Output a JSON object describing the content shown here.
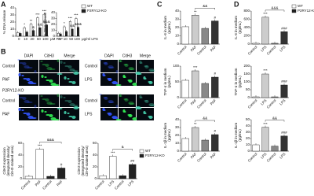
{
  "panels": {
    "a": "A",
    "b": "B",
    "c": "C",
    "d": "D"
  },
  "legend": [
    {
      "name": "WT",
      "color": "#ffffff"
    },
    {
      "name": "P2RY12-KO",
      "color": "#222222"
    }
  ],
  "microscopy": {
    "left": {
      "headers": [
        "DAPI",
        "CitH3",
        "Merge"
      ],
      "rows_top": [
        "Control",
        "PAF"
      ],
      "group": "P2RY12-KO",
      "rows_bottom": [
        "Control",
        "PAF"
      ]
    },
    "right": {
      "headers": [
        "DAPI",
        "CitH3",
        "Merge"
      ],
      "rows_top": [
        "Control",
        "LPS"
      ],
      "rows_bottom": [
        "Control",
        "LPS"
      ]
    }
  },
  "charts": [
    {
      "type": "bar",
      "ylabel": [
        "% DNA release"
      ],
      "xlabel": "μM PAF",
      "categories": [
        "0",
        "10",
        "20",
        "50",
        "100"
      ],
      "series": [
        {
          "name": "WT",
          "color": "#ffffff",
          "values": [
            5,
            12,
            17,
            26,
            31
          ],
          "labels": [
            null,
            "*",
            "**",
            "***",
            "***"
          ]
        },
        {
          "name": "P2RY12-KO",
          "color": "#222222",
          "values": [
            4,
            6,
            8,
            12,
            16
          ],
          "labels": [
            null,
            null,
            "&",
            "&&",
            "&&&"
          ]
        }
      ],
      "ylim": [
        0,
        40
      ],
      "yticks": [
        0,
        10,
        20,
        30,
        40
      ]
    },
    {
      "type": "bar",
      "ylabel": [
        "% DNA release"
      ],
      "xlabel": "μg/ml LPS",
      "categories": [
        "0",
        "10",
        "50",
        "100"
      ],
      "series": [
        {
          "name": "WT",
          "color": "#ffffff",
          "values": [
            5,
            16,
            25,
            30
          ],
          "labels": [
            null,
            "*",
            "***",
            "***"
          ]
        },
        {
          "name": "P2RY12-KO",
          "color": "#222222",
          "values": [
            4,
            8,
            12,
            15
          ],
          "labels": [
            null,
            null,
            "&&",
            "&&&"
          ]
        }
      ],
      "ylim": [
        0,
        40
      ],
      "yticks": [
        0,
        10,
        20,
        30,
        40
      ]
    },
    {
      "type": "bar",
      "ylabel": [
        "CitH3 expression",
        "(integrated density/",
        "CitH3-stained area)"
      ],
      "categories": [
        "Control",
        "PAF",
        "Control",
        "PAF"
      ],
      "values": [
        4,
        50,
        4,
        18
      ],
      "colors": [
        "#ffffff",
        "#ffffff",
        "#222222",
        "#222222"
      ],
      "bar_labels": [
        null,
        "***",
        null,
        "#"
      ],
      "ylim": [
        0,
        60
      ],
      "yticks": [
        0,
        20,
        40,
        60
      ],
      "bracket": "&&&"
    },
    {
      "type": "bar",
      "ylabel": [
        "CitH3 expression",
        "(integrated density/",
        "CitH3-stained area)"
      ],
      "categories": [
        "Control",
        "LPS",
        "Control",
        "LPS"
      ],
      "values": [
        5,
        38,
        5,
        24
      ],
      "colors": [
        "#ffffff",
        "#ffffff",
        "#222222",
        "#222222"
      ],
      "bar_labels": [
        null,
        "***",
        null,
        "##"
      ],
      "ylim": [
        0,
        60
      ],
      "yticks": [
        0,
        20,
        40,
        60
      ],
      "bracket": "&"
    },
    {
      "type": "bar",
      "ylabel": [
        "IL-6 in medium",
        "(pg/mL)"
      ],
      "categories": [
        "Control",
        "PAF",
        "Control",
        "PAF"
      ],
      "values": [
        21,
        35,
        19,
        28
      ],
      "colors": [
        "#ffffff",
        "#cccccc",
        "#888888",
        "#333333"
      ],
      "bar_labels": [
        null,
        "**",
        null,
        "#"
      ],
      "ylim": [
        0,
        40
      ],
      "yticks": [
        0,
        10,
        20,
        30,
        40
      ],
      "bracket": "&&"
    },
    {
      "type": "bar",
      "ylabel": [
        "TNF-α in medium",
        "(pg/mL)"
      ],
      "categories": [
        "Control",
        "PAF",
        "Control",
        "PAF"
      ],
      "values": [
        55,
        85,
        45,
        65
      ],
      "colors": [
        "#ffffff",
        "#cccccc",
        "#888888",
        "#333333"
      ],
      "bar_labels": [
        null,
        "***",
        null,
        "#"
      ],
      "ylim": [
        0,
        100
      ],
      "yticks": [
        0,
        50,
        100
      ]
    },
    {
      "type": "bar",
      "ylabel": [
        "IL-1β in medium",
        "(pg/mL)"
      ],
      "categories": [
        "Control",
        "PAF",
        "Control",
        "PAF"
      ],
      "values": [
        16,
        30,
        14,
        21
      ],
      "colors": [
        "#ffffff",
        "#cccccc",
        "#888888",
        "#333333"
      ],
      "bar_labels": [
        null,
        "**",
        null,
        "#"
      ],
      "ylim": [
        0,
        40
      ],
      "yticks": [
        0,
        10,
        20,
        30,
        40
      ],
      "bracket": "&&"
    },
    {
      "type": "bar",
      "ylabel": [
        "IL-6 in medium",
        "(pg/mL)"
      ],
      "categories": [
        "Control",
        "LPS",
        "Control",
        "LPS"
      ],
      "values": [
        20,
        650,
        20,
        300
      ],
      "colors": [
        "#ffffff",
        "#cccccc",
        "#888888",
        "#333333"
      ],
      "bar_labels": [
        null,
        "***",
        null,
        "###"
      ],
      "ylim": [
        0,
        800
      ],
      "yticks": [
        0,
        200,
        400,
        600,
        800
      ],
      "bracket": "&&&"
    },
    {
      "type": "bar",
      "ylabel": [
        "TNF-α in medium",
        "(pg/mL)"
      ],
      "categories": [
        "Control",
        "LPS",
        "Control",
        "LPS"
      ],
      "values": [
        5,
        150,
        5,
        80
      ],
      "colors": [
        "#ffffff",
        "#cccccc",
        "#888888",
        "#333333"
      ],
      "bar_labels": [
        null,
        "***",
        null,
        "###"
      ],
      "ylim": [
        0,
        200
      ],
      "yticks": [
        0,
        50,
        100,
        150,
        200
      ]
    },
    {
      "type": "bar",
      "ylabel": [
        "IL-1β in medium",
        "(pg/mL)"
      ],
      "categories": [
        "Control",
        "LPS",
        "Control",
        "LPS"
      ],
      "values": [
        10,
        38,
        8,
        24
      ],
      "colors": [
        "#ffffff",
        "#cccccc",
        "#888888",
        "#333333"
      ],
      "bar_labels": [
        null,
        "***",
        null,
        "###"
      ],
      "ylim": [
        0,
        50
      ],
      "yticks": [
        0,
        10,
        20,
        30,
        40,
        50
      ],
      "bracket": "&&"
    }
  ]
}
